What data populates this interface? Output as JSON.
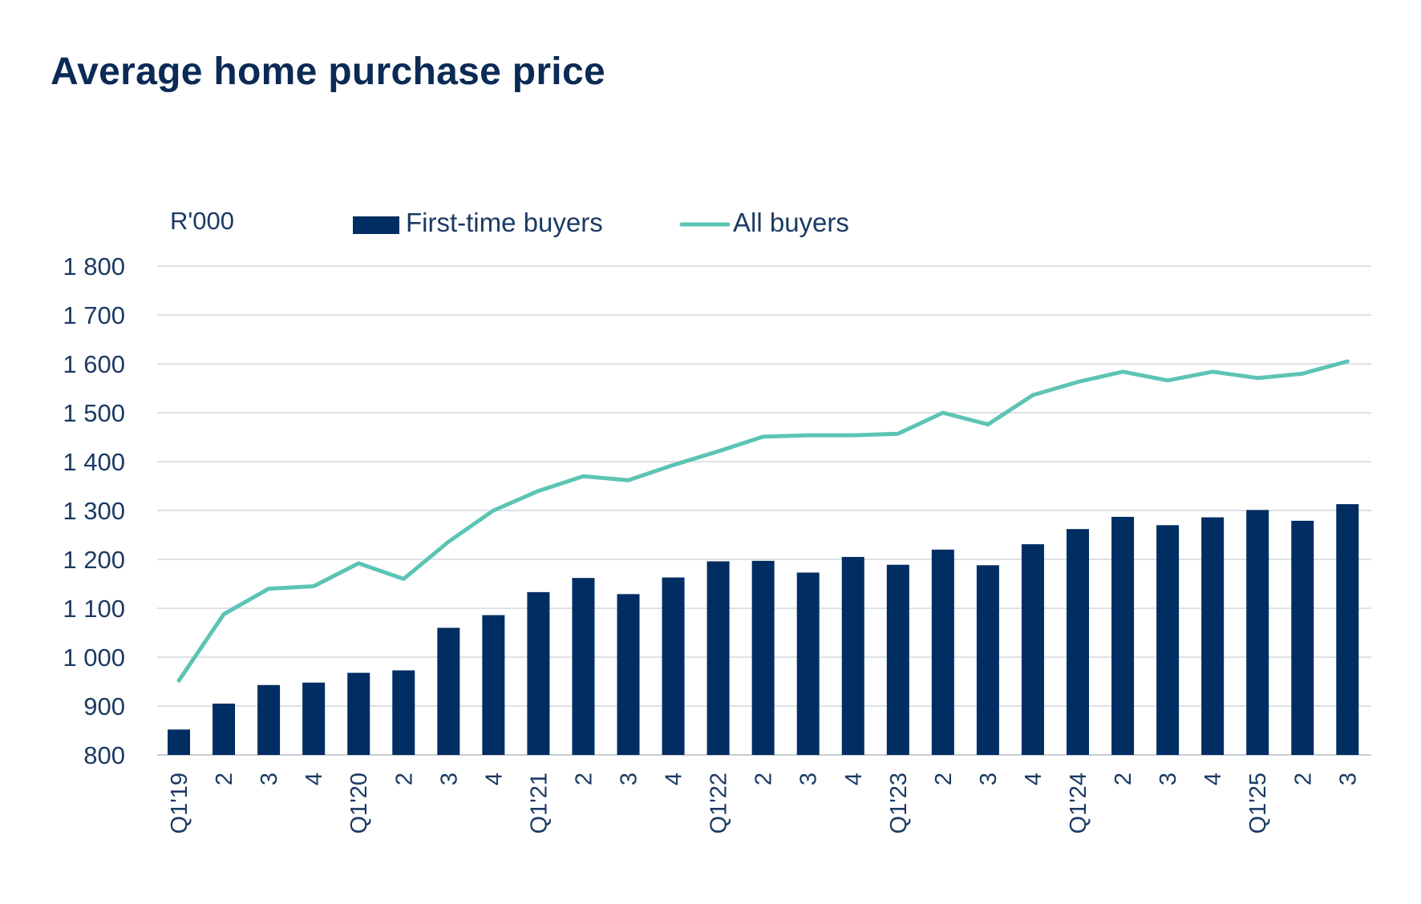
{
  "chart_data": {
    "type": "bar",
    "title": "Average home purchase price",
    "unit_label": "R'000",
    "ylim": [
      800,
      1800
    ],
    "yticks": [
      800,
      900,
      1000,
      1100,
      1200,
      1300,
      1400,
      1500,
      1600,
      1700,
      1800
    ],
    "ytick_labels": [
      "800",
      "900",
      "1 000",
      "1 100",
      "1 200",
      "1 300",
      "1 400",
      "1 500",
      "1 600",
      "1 700",
      "1 800"
    ],
    "grid": true,
    "legend_position": "top",
    "categories": [
      "Q1'19",
      "2",
      "3",
      "4",
      "Q1'20",
      "2",
      "3",
      "4",
      "Q1'21",
      "2",
      "3",
      "4",
      "Q1'22",
      "2",
      "3",
      "4",
      "Q1'23",
      "2",
      "3",
      "4",
      "Q1'24",
      "2",
      "3",
      "4",
      "Q1'25",
      "2",
      "3"
    ],
    "series": [
      {
        "name": "First-time buyers",
        "type": "bar",
        "color": "#002d62",
        "values": [
          852,
          905,
          943,
          948,
          968,
          973,
          1060,
          1086,
          1133,
          1162,
          1129,
          1163,
          1196,
          1197,
          1173,
          1205,
          1189,
          1220,
          1188,
          1231,
          1262,
          1287,
          1270,
          1286,
          1301,
          1279,
          1313
        ]
      },
      {
        "name": "All buyers",
        "type": "line",
        "color": "#5cc4b4",
        "values": [
          952,
          1088,
          1140,
          1145,
          1192,
          1160,
          1236,
          1300,
          1340,
          1370,
          1362,
          1393,
          1421,
          1451,
          1454,
          1454,
          1457,
          1500,
          1476,
          1536,
          1563,
          1584,
          1566,
          1584,
          1571,
          1580,
          1605
        ]
      }
    ]
  }
}
